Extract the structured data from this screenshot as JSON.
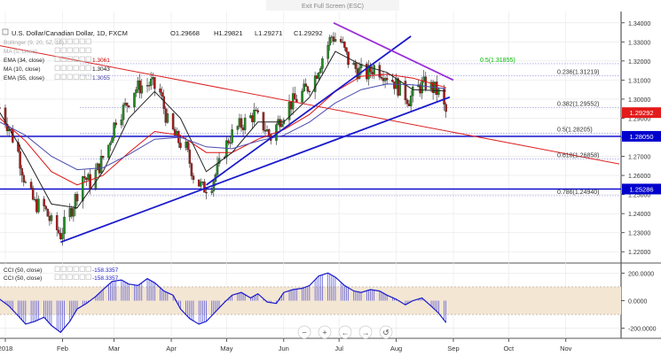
{
  "top_bar": {
    "exit_label": "Exit Full Screen (ESC)"
  },
  "header": {
    "symbol_title": "U.S. Dollar/Canadian Dollar, 1D, FXCM",
    "ohlc": {
      "open": "O1.29668",
      "high": "H1.29821",
      "low": "L1.29271",
      "close": "C1.29292"
    },
    "current_price": "1.29292"
  },
  "legend": [
    {
      "label": "Bollinger (9, 20, 5Z, 10)",
      "value": "",
      "color": "#bdbdbd"
    },
    {
      "label": "MA (5, close)",
      "value": "",
      "color": "#bdbdbd"
    },
    {
      "label": "EMA (34, close)",
      "value": "1.3061",
      "color": "#cc0000"
    },
    {
      "label": "MA (10, close)",
      "value": "1.3043",
      "color": "#111111"
    },
    {
      "label": "EMA (55, close)",
      "value": "1.3055",
      "color": "#3a3aa0"
    }
  ],
  "horizontal_levels": [
    {
      "price": 1.2805,
      "label": "1.28050",
      "color": "#0000cc"
    },
    {
      "price": 1.25286,
      "label": "1.25286",
      "color": "#0000cc"
    }
  ],
  "fib_levels": [
    {
      "price": 1.31855,
      "label": "0.5(1.31855)",
      "color": "#00bb00"
    },
    {
      "price": 1.31219,
      "label": "0.236(1.31219)",
      "color": "#333333"
    },
    {
      "price": 1.29552,
      "label": "0.382(1.29552)",
      "color": "#333333"
    },
    {
      "price": 1.28205,
      "label": "0.5(1.28205)",
      "color": "#333333"
    },
    {
      "price": 1.26858,
      "label": "0.618(1.26858)",
      "color": "#333333"
    },
    {
      "price": 1.2494,
      "label": "0.786(1.24940)",
      "color": "#333333"
    }
  ],
  "cci_panel": {
    "legend": [
      {
        "label": "CCI (50, close)",
        "value": "-158.3357"
      },
      {
        "label": "CCI (50, close)",
        "value": "-158.3357"
      }
    ],
    "overbought": 100,
    "oversold": -100,
    "ticks": [
      {
        "value": 200,
        "label": "200.0000"
      },
      {
        "value": 0,
        "label": "0.0000"
      },
      {
        "value": -200,
        "label": "-200.0000"
      }
    ]
  },
  "nav_buttons": [
    {
      "name": "zoom-out-button",
      "symbol": "−"
    },
    {
      "name": "zoom-in-button",
      "symbol": "+"
    },
    {
      "name": "scroll-left-button",
      "symbol": "←"
    },
    {
      "name": "scroll-right-button",
      "symbol": "→"
    },
    {
      "name": "reset-button",
      "symbol": "↺"
    }
  ],
  "chart_data": {
    "type": "candlestick",
    "title": "U.S. Dollar/Canadian Dollar, 1D, FXCM",
    "x_axis": {
      "start": "2018-01-01",
      "end": "2018-11-30",
      "tick_labels": [
        {
          "date": "2018-01-01",
          "label": "2018"
        },
        {
          "date": "2018-02-01",
          "label": "Feb"
        },
        {
          "date": "2018-03-01",
          "label": "Mar"
        },
        {
          "date": "2018-04-01",
          "label": "Apr"
        },
        {
          "date": "2018-05-01",
          "label": "May"
        },
        {
          "date": "2018-06-01",
          "label": "Jun"
        },
        {
          "date": "2018-07-01",
          "label": "Jul"
        },
        {
          "date": "2018-08-01",
          "label": "Aug"
        },
        {
          "date": "2018-09-01",
          "label": "Sep"
        },
        {
          "date": "2018-10-01",
          "label": "Oct"
        },
        {
          "date": "2018-11-01",
          "label": "Nov"
        }
      ]
    },
    "y_axis": {
      "ylim": [
        1.215,
        1.345
      ],
      "tick_labels": [
        "1.34000",
        "1.33000",
        "1.32000",
        "1.31000",
        "1.30000",
        "1.29000",
        "1.28000",
        "1.27000",
        "1.26000",
        "1.25000",
        "1.24000",
        "1.23000",
        "1.22000"
      ]
    },
    "close_series": [
      [
        "2017-12-29",
        1.2955
      ],
      [
        "2018-01-03",
        1.285
      ],
      [
        "2018-01-08",
        1.272
      ],
      [
        "2018-01-12",
        1.255
      ],
      [
        "2018-01-17",
        1.245
      ],
      [
        "2018-01-22",
        1.243
      ],
      [
        "2018-01-26",
        1.235
      ],
      [
        "2018-01-31",
        1.229
      ],
      [
        "2018-02-02",
        1.234
      ],
      [
        "2018-02-07",
        1.245
      ],
      [
        "2018-02-12",
        1.26
      ],
      [
        "2018-02-16",
        1.256
      ],
      [
        "2018-02-21",
        1.265
      ],
      [
        "2018-02-26",
        1.276
      ],
      [
        "2018-03-02",
        1.29
      ],
      [
        "2018-03-07",
        1.296
      ],
      [
        "2018-03-12",
        1.305
      ],
      [
        "2018-03-16",
        1.307
      ],
      [
        "2018-03-21",
        1.308
      ],
      [
        "2018-03-26",
        1.303
      ],
      [
        "2018-03-30",
        1.288
      ],
      [
        "2018-04-04",
        1.279
      ],
      [
        "2018-04-09",
        1.274
      ],
      [
        "2018-04-13",
        1.26
      ],
      [
        "2018-04-18",
        1.253
      ],
      [
        "2018-04-23",
        1.256
      ],
      [
        "2018-04-27",
        1.265
      ],
      [
        "2018-05-02",
        1.279
      ],
      [
        "2018-05-07",
        1.285
      ],
      [
        "2018-05-11",
        1.288
      ],
      [
        "2018-05-16",
        1.292
      ],
      [
        "2018-05-21",
        1.286
      ],
      [
        "2018-05-25",
        1.28
      ],
      [
        "2018-05-30",
        1.29
      ],
      [
        "2018-06-04",
        1.297
      ],
      [
        "2018-06-08",
        1.3
      ],
      [
        "2018-06-13",
        1.305
      ],
      [
        "2018-06-18",
        1.312
      ],
      [
        "2018-06-22",
        1.322
      ],
      [
        "2018-06-27",
        1.333
      ],
      [
        "2018-07-02",
        1.33
      ],
      [
        "2018-07-06",
        1.32
      ],
      [
        "2018-07-11",
        1.315
      ],
      [
        "2018-07-16",
        1.313
      ],
      [
        "2018-07-20",
        1.317
      ],
      [
        "2018-07-25",
        1.314
      ],
      [
        "2018-07-30",
        1.31
      ],
      [
        "2018-08-03",
        1.305
      ],
      [
        "2018-08-08",
        1.3
      ],
      [
        "2018-08-13",
        1.306
      ],
      [
        "2018-08-17",
        1.308
      ],
      [
        "2018-08-22",
        1.305
      ],
      [
        "2018-08-24",
        1.303
      ],
      [
        "2018-08-28",
        1.2929
      ]
    ],
    "moving_averages": {
      "EMA (34, close)": [
        [
          "2017-12-29",
          1.29
        ],
        [
          "2018-01-12",
          1.278
        ],
        [
          "2018-01-26",
          1.262
        ],
        [
          "2018-02-09",
          1.255
        ],
        [
          "2018-02-23",
          1.26
        ],
        [
          "2018-03-09",
          1.272
        ],
        [
          "2018-03-23",
          1.283
        ],
        [
          "2018-04-06",
          1.281
        ],
        [
          "2018-04-20",
          1.272
        ],
        [
          "2018-05-04",
          1.272
        ],
        [
          "2018-05-18",
          1.279
        ],
        [
          "2018-06-01",
          1.284
        ],
        [
          "2018-06-15",
          1.292
        ],
        [
          "2018-06-29",
          1.304
        ],
        [
          "2018-07-13",
          1.312
        ],
        [
          "2018-07-27",
          1.313
        ],
        [
          "2018-08-10",
          1.311
        ],
        [
          "2018-08-28",
          1.3061
        ]
      ],
      "MA (10, close)": [
        [
          "2017-12-29",
          1.293
        ],
        [
          "2018-01-12",
          1.27
        ],
        [
          "2018-01-26",
          1.245
        ],
        [
          "2018-02-09",
          1.243
        ],
        [
          "2018-02-23",
          1.262
        ],
        [
          "2018-03-09",
          1.29
        ],
        [
          "2018-03-23",
          1.304
        ],
        [
          "2018-04-06",
          1.29
        ],
        [
          "2018-04-20",
          1.262
        ],
        [
          "2018-05-04",
          1.272
        ],
        [
          "2018-05-18",
          1.288
        ],
        [
          "2018-06-01",
          1.288
        ],
        [
          "2018-06-15",
          1.301
        ],
        [
          "2018-06-29",
          1.325
        ],
        [
          "2018-07-13",
          1.318
        ],
        [
          "2018-07-27",
          1.314
        ],
        [
          "2018-08-10",
          1.305
        ],
        [
          "2018-08-28",
          1.3043
        ]
      ],
      "EMA (55, close)": [
        [
          "2017-12-29",
          1.288
        ],
        [
          "2018-01-12",
          1.281
        ],
        [
          "2018-01-26",
          1.27
        ],
        [
          "2018-02-09",
          1.263
        ],
        [
          "2018-02-23",
          1.264
        ],
        [
          "2018-03-09",
          1.271
        ],
        [
          "2018-03-23",
          1.279
        ],
        [
          "2018-04-06",
          1.28
        ],
        [
          "2018-04-20",
          1.275
        ],
        [
          "2018-05-04",
          1.274
        ],
        [
          "2018-05-18",
          1.278
        ],
        [
          "2018-06-01",
          1.281
        ],
        [
          "2018-06-15",
          1.288
        ],
        [
          "2018-06-29",
          1.298
        ],
        [
          "2018-07-13",
          1.305
        ],
        [
          "2018-07-27",
          1.308
        ],
        [
          "2018-08-10",
          1.3075
        ],
        [
          "2018-08-28",
          1.3055
        ]
      ]
    },
    "trendlines": [
      {
        "color": "#dd2222",
        "from": [
          "2017-12-29",
          1.328
        ],
        "to": [
          "2018-11-30",
          1.266
        ]
      },
      {
        "color": "#1a1acc",
        "from": [
          "2018-01-31",
          1.225
        ],
        "to": [
          "2018-08-30",
          1.301
        ]
      },
      {
        "color": "#1a1acc",
        "from": [
          "2018-04-20",
          1.255
        ],
        "to": [
          "2018-08-09",
          1.333
        ]
      },
      {
        "color": "#9b30d9",
        "from": [
          "2018-06-28",
          1.34
        ],
        "to": [
          "2018-09-01",
          1.31
        ]
      }
    ],
    "cci_series": [
      [
        "2017-12-29",
        10
      ],
      [
        "2018-01-03",
        -40
      ],
      [
        "2018-01-08",
        -110
      ],
      [
        "2018-01-12",
        -170
      ],
      [
        "2018-01-17",
        -150
      ],
      [
        "2018-01-22",
        -120
      ],
      [
        "2018-01-26",
        -180
      ],
      [
        "2018-01-31",
        -230
      ],
      [
        "2018-02-05",
        -150
      ],
      [
        "2018-02-09",
        -60
      ],
      [
        "2018-02-14",
        -20
      ],
      [
        "2018-02-19",
        30
      ],
      [
        "2018-02-23",
        80
      ],
      [
        "2018-02-28",
        140
      ],
      [
        "2018-03-05",
        150
      ],
      [
        "2018-03-09",
        120
      ],
      [
        "2018-03-14",
        110
      ],
      [
        "2018-03-19",
        160
      ],
      [
        "2018-03-23",
        130
      ],
      [
        "2018-03-28",
        70
      ],
      [
        "2018-04-02",
        40
      ],
      [
        "2018-04-06",
        -60
      ],
      [
        "2018-04-11",
        -130
      ],
      [
        "2018-04-16",
        -170
      ],
      [
        "2018-04-20",
        -150
      ],
      [
        "2018-04-25",
        -80
      ],
      [
        "2018-04-30",
        -10
      ],
      [
        "2018-05-04",
        40
      ],
      [
        "2018-05-09",
        60
      ],
      [
        "2018-05-14",
        20
      ],
      [
        "2018-05-18",
        50
      ],
      [
        "2018-05-23",
        -10
      ],
      [
        "2018-05-28",
        -20
      ],
      [
        "2018-06-01",
        60
      ],
      [
        "2018-06-06",
        80
      ],
      [
        "2018-06-11",
        90
      ],
      [
        "2018-06-15",
        110
      ],
      [
        "2018-06-20",
        180
      ],
      [
        "2018-06-25",
        200
      ],
      [
        "2018-06-29",
        170
      ],
      [
        "2018-07-04",
        110
      ],
      [
        "2018-07-09",
        70
      ],
      [
        "2018-07-13",
        60
      ],
      [
        "2018-07-18",
        80
      ],
      [
        "2018-07-23",
        70
      ],
      [
        "2018-07-27",
        40
      ],
      [
        "2018-08-01",
        10
      ],
      [
        "2018-08-06",
        -30
      ],
      [
        "2018-08-10",
        0
      ],
      [
        "2018-08-15",
        20
      ],
      [
        "2018-08-20",
        -40
      ],
      [
        "2018-08-24",
        -90
      ],
      [
        "2018-08-28",
        -158.3357
      ]
    ]
  }
}
